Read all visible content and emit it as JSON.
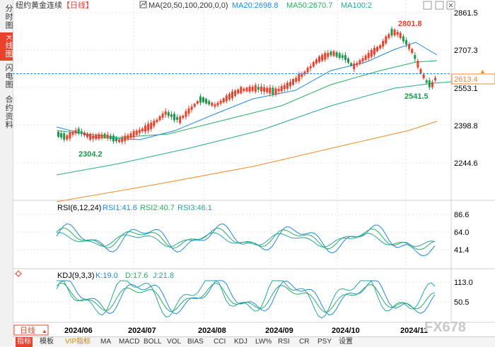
{
  "sidebar": {
    "tabs": [
      {
        "label": "分时图",
        "active": false
      },
      {
        "label": "K线图",
        "active": true
      },
      {
        "label": "闪电图",
        "active": false
      },
      {
        "label": "合约资料",
        "active": false
      }
    ]
  },
  "header": {
    "instrument": "纽约黄金连续",
    "period": "【日线】",
    "ma_params": "MA(20,50,100,200,0,0)",
    "ma20": "MA20:2698.8",
    "ma50": "MA50:2670.7",
    "ma100": "MA100:2",
    "colors": {
      "ma20": "#1e88e5",
      "ma50": "#27ae60",
      "ma100": "#26a69a",
      "ma200": "#f08a24"
    }
  },
  "price_axis": {
    "ticks": [
      "2861.5",
      "2707.3",
      "2553.1",
      "2398.8",
      "2244.6"
    ],
    "current_price": "2613.4",
    "high_label": "2801.8",
    "low_label": "2304.2",
    "recent_low_label": "2541.5"
  },
  "rsi": {
    "title": "RSI(6,12,24)",
    "rsi1": "RSI1:41.6",
    "rsi2": "RSI2:40.7",
    "rsi3": "RSI3:46.1",
    "ticks": [
      "86.6",
      "64.0",
      "41.4"
    ]
  },
  "kdj": {
    "title": "KDJ(9,3,3)",
    "k": "K:19.0",
    "d": "D:17.6",
    "j": "J:21.8",
    "ticks": [
      "113.0",
      "50.5"
    ]
  },
  "time_axis": {
    "period_button": "日线",
    "labels": [
      "2024/06",
      "2024/07",
      "2024/08",
      "2024/09",
      "2024/10",
      "2024/11"
    ]
  },
  "toolbar": {
    "items": [
      "指标",
      "模板",
      "VIP指标",
      "MA",
      "MACD",
      "BOLL",
      "VOL",
      "BIAS",
      "CCI",
      "KDJ",
      "LW%",
      "RSI",
      "CR",
      "PSY",
      "设置"
    ]
  },
  "watermark": "FX678",
  "colors": {
    "up": "#e8412c",
    "down": "#1a9b4b",
    "accent": "#e8412c",
    "grid": "#e6e6e6"
  }
}
